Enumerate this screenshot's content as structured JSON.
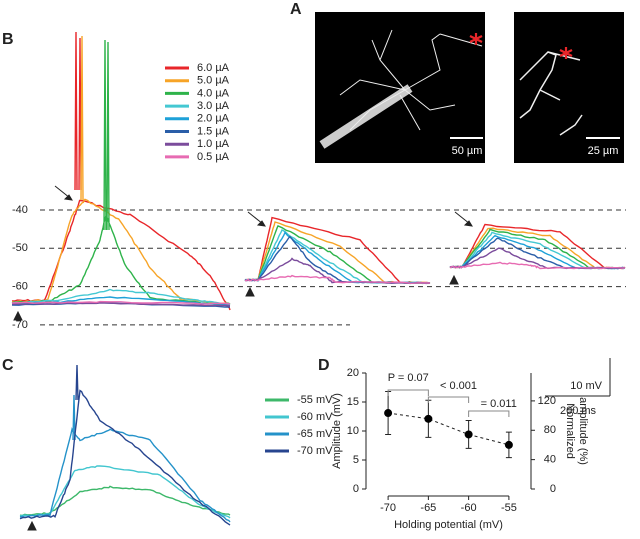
{
  "panel_labels": [
    "A",
    "B",
    "C",
    "D"
  ],
  "image_a": {
    "scale_bars": [
      "50 µm",
      "25 µm"
    ],
    "asterisk_color": "#e8262a"
  },
  "panel_b": {
    "legend": [
      {
        "label": "6.0 µA",
        "color": "#e8262a"
      },
      {
        "label": "5.0 µA",
        "color": "#f7a427"
      },
      {
        "label": "4.0 µA",
        "color": "#2eb34a"
      },
      {
        "label": "3.0 µA",
        "color": "#44c8d2"
      },
      {
        "label": "2.0 µA",
        "color": "#1ea1d8"
      },
      {
        "label": "1.5 µA",
        "color": "#2a5ea8"
      },
      {
        "label": "1.0 µA",
        "color": "#7b4c9c"
      },
      {
        "label": "0.5 µA",
        "color": "#e76bb2"
      }
    ],
    "levels": [
      -40,
      -50,
      -60,
      -70
    ],
    "scale_bars": {
      "voltage": "10 mV",
      "time": "200 ms"
    }
  },
  "panel_c": {
    "legend": [
      {
        "label": "-55 mV",
        "color": "#3db86a"
      },
      {
        "label": "-60 mV",
        "color": "#42c6cf"
      },
      {
        "label": "-65 mV",
        "color": "#2492c9"
      },
      {
        "label": "-70 mV",
        "color": "#27458f"
      }
    ]
  },
  "chart_data": {
    "type": "errorbar",
    "x": [
      -70,
      -65,
      -60,
      -55
    ],
    "values": [
      13.1,
      12.1,
      9.4,
      7.6
    ],
    "errors": [
      3.7,
      3.2,
      2.4,
      2.2
    ],
    "color": "#000000",
    "xlim": [
      -72,
      -53
    ],
    "xticks": [
      -70,
      -65,
      -60,
      -55
    ],
    "ylim": [
      0,
      20
    ],
    "yticks": [
      0,
      5,
      10,
      15,
      20
    ],
    "y2lim": [
      0,
      158
    ],
    "y2ticks": [
      0,
      40,
      80,
      120
    ],
    "xlabel": "Holding potential (mV)",
    "ylabel": "Amplitude (mV)",
    "y2label": [
      "Normalized",
      "amplitude (%)"
    ],
    "annotations": [
      "P = 0.07",
      "< 0.001",
      "= 0.011"
    ]
  }
}
